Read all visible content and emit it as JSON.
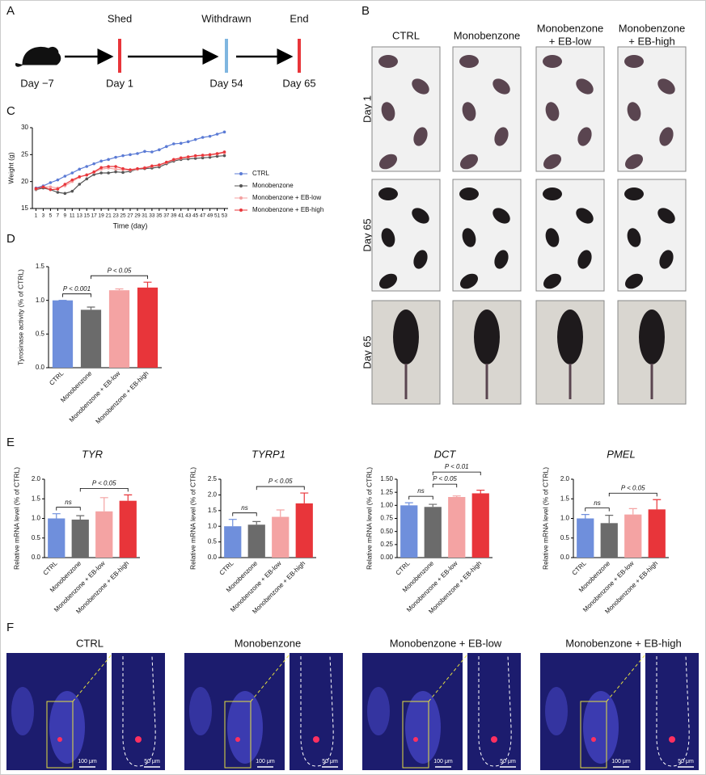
{
  "timeline": {
    "label": "A",
    "start": "Day −7",
    "events": [
      {
        "name": "Shed",
        "day": "Day 1"
      },
      {
        "name": "Withdrawn",
        "day": "Day 54"
      },
      {
        "name": "End",
        "day": "Day 65"
      }
    ]
  },
  "photos": {
    "label": "B",
    "columns": [
      [
        "CTRL"
      ],
      [
        "Monobenzone"
      ],
      [
        "Monobenzone",
        "+ EB-low"
      ],
      [
        "Monobenzone",
        "+ EB-high"
      ]
    ],
    "rows": [
      "Day 1",
      "Day 65",
      "Day 65"
    ]
  },
  "panel_e": {
    "label": "E"
  },
  "micrographs": {
    "label": "F",
    "panels": [
      {
        "title": "CTRL",
        "scale_bars": [
          "100 μm",
          "50 μm"
        ]
      },
      {
        "title": "Monobenzone",
        "scale_bars": [
          "100 μm",
          "50 μm"
        ]
      },
      {
        "title": "Monobenzone + EB-low",
        "scale_bars": [
          "100 μm",
          "50 μm"
        ]
      },
      {
        "title": "Monobenzone + EB-high",
        "scale_bars": [
          "100 μm",
          "50 μm"
        ]
      }
    ]
  },
  "chart_data": [
    {
      "type": "line",
      "label": "C",
      "ylabel": "Weight (g)",
      "xlabel": "Time (day)",
      "x": [
        1,
        3,
        5,
        7,
        9,
        11,
        13,
        15,
        17,
        19,
        21,
        23,
        25,
        27,
        29,
        31,
        33,
        35,
        37,
        39,
        41,
        43,
        45,
        47,
        49,
        51,
        53
      ],
      "xlim": [
        0,
        54
      ],
      "xticks": [
        1,
        3,
        5,
        7,
        9,
        11,
        13,
        15,
        17,
        19,
        21,
        23,
        25,
        27,
        29,
        31,
        33,
        35,
        37,
        39,
        41,
        43,
        45,
        47,
        49,
        51,
        53
      ],
      "ylim": [
        15,
        30
      ],
      "yticks": [
        15,
        20,
        25,
        30
      ],
      "series": [
        {
          "name": "CTRL",
          "color": "#5b7bd5",
          "values": [
            18.8,
            19.2,
            19.8,
            20.3,
            21,
            21.6,
            22.3,
            22.8,
            23.3,
            23.8,
            24.1,
            24.5,
            24.8,
            25,
            25.2,
            25.6,
            25.5,
            25.9,
            26.5,
            27,
            27.1,
            27.4,
            27.8,
            28.2,
            28.4,
            28.8,
            29.2
          ]
        },
        {
          "name": "Monobenzone",
          "color": "#555555",
          "values": [
            18.5,
            18.8,
            18.5,
            18,
            17.8,
            18.2,
            19.5,
            20.5,
            21.3,
            21.6,
            21.6,
            21.8,
            21.7,
            21.9,
            22.3,
            22.4,
            22.5,
            22.7,
            23.3,
            23.8,
            24.1,
            24.2,
            24.3,
            24.4,
            24.5,
            24.7,
            24.8
          ]
        },
        {
          "name": "Monobenzone + EB-low",
          "color": "#f4a0a0",
          "values": [
            18.6,
            19,
            19,
            18.8,
            19.2,
            20,
            20.8,
            21.3,
            21.7,
            22.3,
            22.5,
            22.3,
            22.2,
            22.1,
            22.3,
            22.6,
            22.8,
            23,
            23.5,
            24,
            24.3,
            24.5,
            24.7,
            24.8,
            24.9,
            25.1,
            25.3
          ]
        },
        {
          "name": "Monobenzone + EB-high",
          "color": "#e8353a",
          "values": [
            18.7,
            19,
            18.5,
            18.6,
            19.5,
            20.3,
            20.9,
            21.2,
            21.8,
            22.6,
            22.8,
            22.8,
            22.4,
            22.2,
            22.4,
            22.5,
            22.9,
            23.1,
            23.6,
            24.1,
            24.4,
            24.6,
            24.8,
            24.9,
            25,
            25.2,
            25.5
          ]
        }
      ]
    },
    {
      "type": "bar",
      "label": "D",
      "ylabel": "Tyrosinase activity (% of CTRL)",
      "categories": [
        "CTRL",
        "Monobenzone",
        "Monobenzone + EB-low",
        "Monobenzone + EB-high"
      ],
      "colors": [
        "#6f8fdc",
        "#6b6b6b",
        "#f4a3a3",
        "#e8353a"
      ],
      "values": [
        1.0,
        0.86,
        1.15,
        1.19
      ],
      "errors": [
        0,
        0.04,
        0.02,
        0.08
      ],
      "ylim": [
        0,
        1.5
      ],
      "yticks": [
        {
          "value": 0,
          "label": "0.0"
        },
        0.5,
        {
          "value": 1,
          "label": "1.0"
        },
        1.5
      ],
      "annotations": [
        "P < 0.001",
        "P < 0.05"
      ]
    },
    {
      "type": "bar",
      "title": "TYR",
      "ylabel": "Relative mRNA level (% of CTRL)",
      "categories": [
        "CTRL",
        "Monobenzone",
        "Monobenzone + EB-low",
        "Monobenzone + EB-high"
      ],
      "colors": [
        "#6f8fdc",
        "#6b6b6b",
        "#f4a3a3",
        "#e8353a"
      ],
      "values": [
        1.0,
        0.97,
        1.18,
        1.45
      ],
      "errors": [
        0.12,
        0.1,
        0.35,
        0.15
      ],
      "ylim": [
        0,
        2
      ],
      "yticks": [
        {
          "value": 0,
          "label": "0.0"
        },
        0.5,
        {
          "value": 1,
          "label": "1.0"
        },
        1.5,
        {
          "value": 2,
          "label": "2.0"
        }
      ],
      "annotations": [
        "ns",
        "P < 0.05"
      ]
    },
    {
      "type": "bar",
      "title": "TYRP1",
      "ylabel": "Relative mRNA level (% of CTRL)",
      "categories": [
        "CTRL",
        "Monobenzone",
        "Monobenzone + EB-low",
        "Monobenzone + EB-high"
      ],
      "colors": [
        "#6f8fdc",
        "#6b6b6b",
        "#f4a3a3",
        "#e8353a"
      ],
      "values": [
        1.0,
        1.05,
        1.3,
        1.73
      ],
      "errors": [
        0.22,
        0.1,
        0.22,
        0.33
      ],
      "ylim": [
        0,
        2.5
      ],
      "yticks": [
        {
          "value": 0,
          "label": "0.0"
        },
        0.5,
        {
          "value": 1,
          "label": "1.0"
        },
        1.5,
        {
          "value": 2,
          "label": "2.0"
        },
        2.5
      ],
      "annotations": [
        "ns",
        "P < 0.05"
      ]
    },
    {
      "type": "bar",
      "title": "DCT",
      "ylabel": "Relative mRNA level (% of CTRL)",
      "categories": [
        "CTRL",
        "Monobenzone",
        "Monobenzone + EB-low",
        "Monobenzone + EB-high"
      ],
      "colors": [
        "#6f8fdc",
        "#6b6b6b",
        "#f4a3a3",
        "#e8353a"
      ],
      "values": [
        1.0,
        0.97,
        1.16,
        1.23
      ],
      "errors": [
        0.05,
        0.05,
        0.02,
        0.06
      ],
      "ylim": [
        0,
        1.5
      ],
      "yticks": [
        {
          "value": 0,
          "label": "0.00"
        },
        0.25,
        {
          "value": 0.5,
          "label": "0.50"
        },
        0.75,
        {
          "value": 1,
          "label": "1.00"
        },
        1.25,
        {
          "value": 1.5,
          "label": "1.50"
        }
      ],
      "annotations": [
        "ns",
        "P < 0.05",
        "P < 0.01"
      ]
    },
    {
      "type": "bar",
      "title": "PMEL",
      "ylabel": "Relative mRNA level (% of CTRL)",
      "categories": [
        "CTRL",
        "Monobenzone",
        "Monobenzone + EB-low",
        "Monobenzone + EB-high"
      ],
      "colors": [
        "#6f8fdc",
        "#6b6b6b",
        "#f4a3a3",
        "#e8353a"
      ],
      "values": [
        1.0,
        0.88,
        1.1,
        1.23
      ],
      "errors": [
        0.1,
        0.2,
        0.15,
        0.25
      ],
      "ylim": [
        0,
        2
      ],
      "yticks": [
        {
          "value": 0,
          "label": "0.0"
        },
        0.5,
        {
          "value": 1,
          "label": "1.0"
        },
        1.5,
        {
          "value": 2,
          "label": "2.0"
        }
      ],
      "annotations": [
        "ns",
        "P < 0.05"
      ]
    }
  ]
}
